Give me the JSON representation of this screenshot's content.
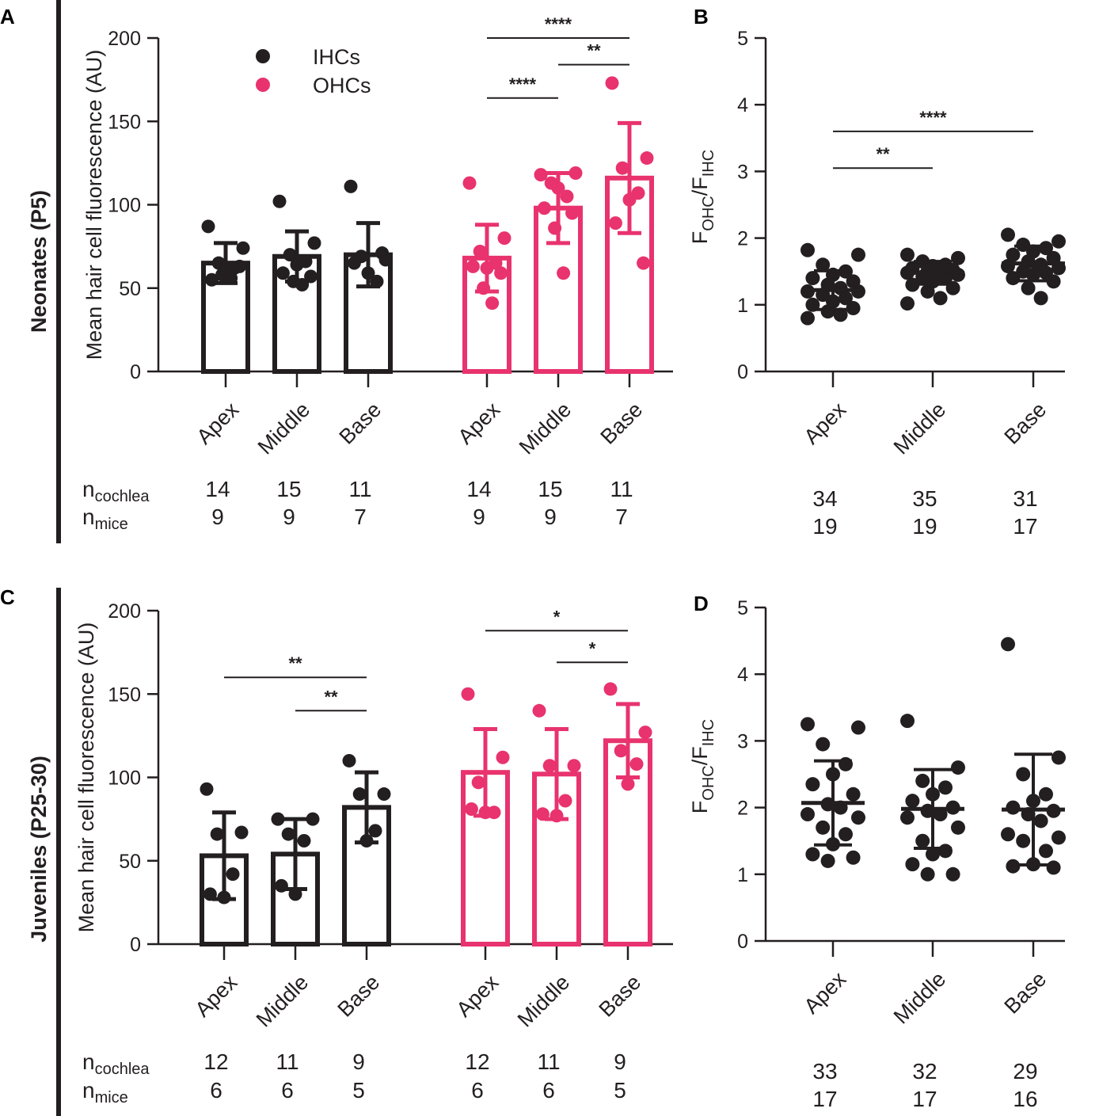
{
  "colors": {
    "ihc": "#231f20",
    "ohc": "#e8336f"
  },
  "row_labels": [
    "Neonates (P5)",
    "Juveniles (P25-30)"
  ],
  "legend": [
    {
      "label": "IHCs",
      "color": "#231f20"
    },
    {
      "label": "OHCs",
      "color": "#e8336f"
    }
  ],
  "n_labels": {
    "cochlea_base": "n",
    "cochlea_sub": "cochlea",
    "mice_base": "n",
    "mice_sub": "mice"
  },
  "chart_data": [
    {
      "panel": "A",
      "type": "bar",
      "ylabel": "Mean hair cell fluorescence (AU)",
      "ylim": [
        0,
        200
      ],
      "yticks": [
        0,
        50,
        100,
        150,
        200
      ],
      "categories": [
        "Apex",
        "Middle",
        "Base",
        "Apex",
        "Middle",
        "Base"
      ],
      "series": [
        {
          "name": "IHCs",
          "mean": [
            65,
            69,
            70
          ],
          "sd": [
            12,
            15,
            19
          ],
          "points": [
            [
              87,
              74,
              65,
              62,
              60,
              55,
              63,
              58,
              56
            ],
            [
              102,
              77,
              70,
              66,
              64,
              59,
              57,
              54,
              52
            ],
            [
              111,
              67,
              69,
              54,
              59,
              65,
              71
            ]
          ]
        },
        {
          "name": "OHCs",
          "mean": [
            68,
            98,
            116
          ],
          "sd": [
            20,
            21,
            33
          ],
          "points": [
            [
              113,
              80,
              72,
              65,
              62,
              63,
              59,
              50,
              41
            ],
            [
              118,
              119,
              113,
              105,
              110,
              98,
              95,
              86,
              59
            ],
            [
              173,
              128,
              122,
              107,
              103,
              89,
              65
            ]
          ]
        }
      ],
      "significance": [
        {
          "from": 3,
          "to": 5,
          "label": "****",
          "level": 200
        },
        {
          "from": 4,
          "to": 5,
          "label": "**",
          "level": 184
        },
        {
          "from": 3,
          "to": 4,
          "label": "****",
          "level": 164
        }
      ],
      "n_cochlea": [
        "14",
        "15",
        "11",
        "14",
        "15",
        "11"
      ],
      "n_mice": [
        "9",
        "9",
        "7",
        "9",
        "9",
        "7"
      ]
    },
    {
      "panel": "B",
      "type": "scatter",
      "ylabel": "FOHC/FIHC",
      "ylabel_main": "F",
      "ylabel_sub1": "OHC",
      "ylabel_sep": "/F",
      "ylabel_sub2": "IHC",
      "ylim": [
        0,
        5
      ],
      "yticks": [
        0,
        1,
        2,
        3,
        4,
        5
      ],
      "categories": [
        "Apex",
        "Middle",
        "Base"
      ],
      "mean": [
        1.22,
        1.48,
        1.62
      ],
      "sd": [
        0.29,
        0.17,
        0.26
      ],
      "points": [
        [
          1.82,
          1.75,
          1.6,
          1.5,
          1.45,
          1.4,
          1.35,
          1.3,
          1.25,
          1.2,
          1.2,
          1.15,
          1.1,
          1.05,
          1.0,
          0.95,
          0.9,
          0.85,
          0.8
        ],
        [
          1.75,
          1.7,
          1.65,
          1.6,
          1.58,
          1.55,
          1.52,
          1.5,
          1.5,
          1.48,
          1.45,
          1.42,
          1.4,
          1.35,
          1.3,
          1.25,
          1.2,
          1.1,
          1.02
        ],
        [
          2.05,
          1.95,
          1.9,
          1.85,
          1.8,
          1.75,
          1.7,
          1.65,
          1.6,
          1.58,
          1.55,
          1.5,
          1.48,
          1.45,
          1.4,
          1.35,
          1.25,
          1.1
        ]
      ],
      "significance": [
        {
          "from": 0,
          "to": 1,
          "label": "**",
          "level": 3.05
        },
        {
          "from": 0,
          "to": 2,
          "label": "****",
          "level": 3.6
        }
      ],
      "n_cochlea": [
        "34",
        "35",
        "31"
      ],
      "n_mice": [
        "19",
        "19",
        "17"
      ]
    },
    {
      "panel": "C",
      "type": "bar",
      "ylabel": "Mean hair cell fluorescence (AU)",
      "ylim": [
        0,
        200
      ],
      "yticks": [
        0,
        50,
        100,
        150,
        200
      ],
      "categories": [
        "Apex",
        "Middle",
        "Base",
        "Apex",
        "Middle",
        "Base"
      ],
      "series": [
        {
          "name": "IHCs",
          "mean": [
            53,
            54,
            82
          ],
          "sd": [
            26,
            21,
            21
          ],
          "points": [
            [
              93,
              67,
              66,
              42,
              28,
              30
            ],
            [
              75,
              75,
              66,
              62,
              30,
              35
            ],
            [
              110,
              90,
              90,
              68,
              62
            ]
          ]
        },
        {
          "name": "OHCs",
          "mean": [
            103,
            102,
            122
          ],
          "sd": [
            26,
            27,
            22
          ],
          "points": [
            [
              150,
              112,
              97,
              79,
              79,
              81
            ],
            [
              140,
              107,
              107,
              86,
              77,
              78
            ],
            [
              153,
              127,
              116,
              108,
              96
            ]
          ]
        }
      ],
      "significance": [
        {
          "from": 0,
          "to": 2,
          "label": "**",
          "level": 160
        },
        {
          "from": 1,
          "to": 2,
          "label": "**",
          "level": 140
        },
        {
          "from": 3,
          "to": 5,
          "label": "*",
          "level": 188
        },
        {
          "from": 4,
          "to": 5,
          "label": "*",
          "level": 169
        }
      ],
      "n_cochlea": [
        "12",
        "11",
        "9",
        "12",
        "11",
        "9"
      ],
      "n_mice": [
        "6",
        "6",
        "5",
        "6",
        "6",
        "5"
      ]
    },
    {
      "panel": "D",
      "type": "scatter",
      "ylabel": "FOHC/FIHC",
      "ylabel_main": "F",
      "ylabel_sub1": "OHC",
      "ylabel_sep": "/F",
      "ylabel_sub2": "IHC",
      "ylim": [
        0,
        5
      ],
      "yticks": [
        0,
        1,
        2,
        3,
        4,
        5
      ],
      "categories": [
        "Apex",
        "Middle",
        "Base"
      ],
      "mean": [
        2.07,
        1.98,
        1.97
      ],
      "sd": [
        0.63,
        0.59,
        0.83
      ],
      "points": [
        [
          3.25,
          3.2,
          2.95,
          2.65,
          2.5,
          2.35,
          2.2,
          2.05,
          2.0,
          1.9,
          1.85,
          1.7,
          1.6,
          1.45,
          1.3,
          1.25,
          1.2
        ],
        [
          3.3,
          2.6,
          2.4,
          2.3,
          2.2,
          2.1,
          2.0,
          1.95,
          1.9,
          1.85,
          1.7,
          1.5,
          1.35,
          1.3,
          1.15,
          1.0,
          1.0
        ],
        [
          4.45,
          2.75,
          2.5,
          2.2,
          2.1,
          2.0,
          1.95,
          1.9,
          1.8,
          1.6,
          1.55,
          1.5,
          1.35,
          1.15,
          1.12,
          1.1
        ]
      ],
      "significance": [],
      "n_cochlea": [
        "33",
        "32",
        "29"
      ],
      "n_mice": [
        "17",
        "17",
        "16"
      ]
    }
  ]
}
